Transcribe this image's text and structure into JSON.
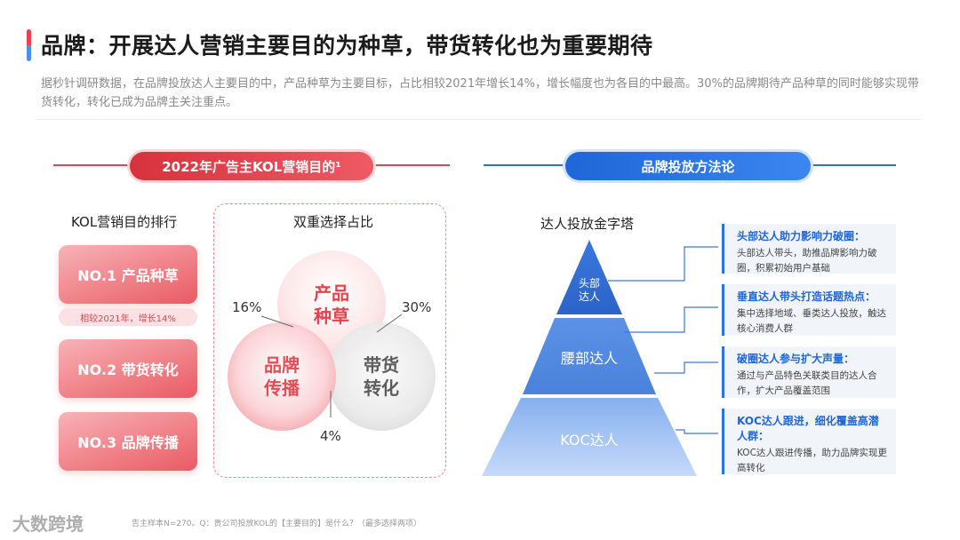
{
  "header": {
    "title": "品牌：开展达人营销主要目的为种草，带货转化也为重要期待",
    "subtitle": "据秒针调研数据，在品牌投放达人主要目的中，产品种草为主要目标，占比相较2021年增长14%，增长幅度也为各目的中最高。30%的品牌期待产品种草的同时能够实现带货转化，转化已成为品牌主关注重点。"
  },
  "left_section": {
    "pill": "2022年广告主KOL营销目的¹",
    "ranking": {
      "heading": "KOL营销目的排行",
      "items": [
        "NO.1  产品种草",
        "NO.2  带货转化",
        "NO.3  品牌传播"
      ],
      "note": "相较2021年，增长14%"
    },
    "venn": {
      "heading": "双重选择占比",
      "circles": [
        "产品\n种草",
        "品牌\n传播",
        "带货\n转化"
      ],
      "pct_left": "16%",
      "pct_right": "30%",
      "pct_bottom": "4%"
    }
  },
  "right_section": {
    "pill": "品牌投放方法论",
    "pyramid": {
      "heading": "达人投放金字塔",
      "levels": [
        "头部\n达人",
        "腰部达人",
        "KOC达人"
      ]
    },
    "infos": [
      {
        "title": "头部达人助力影响力破圈：",
        "desc": "头部达人带头，助推品牌影响力破圈，积累初始用户基础"
      },
      {
        "title": "垂直达人带头打造话题热点：",
        "desc": "集中选择地域、垂类达人投放，触达核心消费人群"
      },
      {
        "title": "破圈达人参与扩大声量：",
        "desc": "通过与产品特色关联类目的达人合作，扩大产品覆盖范围"
      },
      {
        "title": "KOC达人跟进，细化覆盖高潜人群：",
        "desc": "KOC达人跟进传播，助力品牌实现更高转化"
      }
    ]
  },
  "footer": {
    "note": "告主样本N=270。Q：贵公司投放KOL的【主要目的】是什么？（最多选择两项）",
    "watermark": "大数跨境"
  },
  "colors": {
    "red": "#e3434d",
    "blue": "#2a72e0"
  }
}
